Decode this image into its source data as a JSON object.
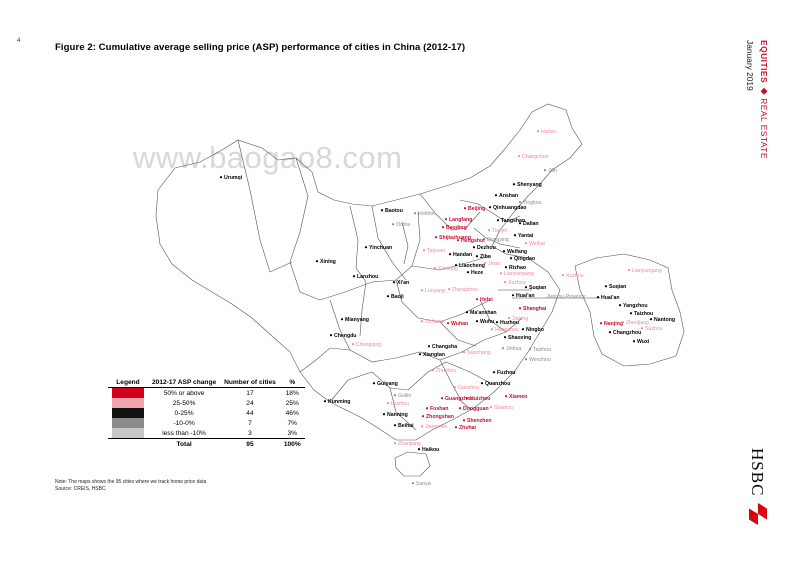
{
  "page_number": "4",
  "title": "Figure 2: Cumulative average selling price (ASP) performance of cities in China (2012-17)",
  "sidebar": {
    "section_a": "EQUITIES",
    "bullet": "◆",
    "section_b": "REAL ESTATE",
    "date": "January 2019"
  },
  "watermark": "www.baogao8.com",
  "map_labels": {
    "province_label": "Jiangsu Province",
    "cities": [
      {
        "name": "Harbin",
        "tier": "pink"
      },
      {
        "name": "Changchun",
        "tier": "pink"
      },
      {
        "name": "Jilin",
        "tier": "grey"
      },
      {
        "name": "Urumqi",
        "tier": "black"
      },
      {
        "name": "Shenyang",
        "tier": "black"
      },
      {
        "name": "Anshan",
        "tier": "black"
      },
      {
        "name": "Yingkou",
        "tier": "grey"
      },
      {
        "name": "Baotou",
        "tier": "black"
      },
      {
        "name": "Hohhot",
        "tier": "grey"
      },
      {
        "name": "Ordos",
        "tier": "grey"
      },
      {
        "name": "Beijing",
        "tier": "red"
      },
      {
        "name": "Qinhuangdao",
        "tier": "black"
      },
      {
        "name": "Tangshan",
        "tier": "black"
      },
      {
        "name": "Dalian",
        "tier": "black"
      },
      {
        "name": "Langfang",
        "tier": "red"
      },
      {
        "name": "Baoding",
        "tier": "red"
      },
      {
        "name": "Tianjin",
        "tier": "pink"
      },
      {
        "name": "Dongying",
        "tier": "grey"
      },
      {
        "name": "Yantai",
        "tier": "black"
      },
      {
        "name": "Shijiazhuang",
        "tier": "red"
      },
      {
        "name": "Hengshui",
        "tier": "red"
      },
      {
        "name": "Weihai",
        "tier": "pink"
      },
      {
        "name": "Yinchuan",
        "tier": "black"
      },
      {
        "name": "Taiyuan",
        "tier": "pink"
      },
      {
        "name": "Dezhou",
        "tier": "black"
      },
      {
        "name": "Weifang",
        "tier": "black"
      },
      {
        "name": "Handan",
        "tier": "black"
      },
      {
        "name": "Zibo",
        "tier": "black"
      },
      {
        "name": "Jinan",
        "tier": "pink"
      },
      {
        "name": "Qingdao",
        "tier": "black"
      },
      {
        "name": "Xining",
        "tier": "black"
      },
      {
        "name": "Xinxiang",
        "tier": "pink"
      },
      {
        "name": "Liaocheng",
        "tier": "black"
      },
      {
        "name": "Rizhao",
        "tier": "black"
      },
      {
        "name": "Heze",
        "tier": "black"
      },
      {
        "name": "Lianyungang",
        "tier": "pink"
      },
      {
        "name": "Lanzhou",
        "tier": "black"
      },
      {
        "name": "Xuzhou",
        "tier": "pink"
      },
      {
        "name": "Xi'an",
        "tier": "black"
      },
      {
        "name": "Luoyang",
        "tier": "pink"
      },
      {
        "name": "Zhengzhou",
        "tier": "pink"
      },
      {
        "name": "Suqian",
        "tier": "black"
      },
      {
        "name": "Baoji",
        "tier": "black"
      },
      {
        "name": "Huai'an",
        "tier": "black"
      },
      {
        "name": "Hefei",
        "tier": "red"
      },
      {
        "name": "Ma'anshan",
        "tier": "black"
      },
      {
        "name": "Shanghai",
        "tier": "red"
      },
      {
        "name": "Jiaxing",
        "tier": "pink"
      },
      {
        "name": "Yichang",
        "tier": "pink"
      },
      {
        "name": "Mianyang",
        "tier": "black"
      },
      {
        "name": "Wuhan",
        "tier": "red"
      },
      {
        "name": "Wuhu",
        "tier": "black"
      },
      {
        "name": "Huzhou",
        "tier": "black"
      },
      {
        "name": "Hangzhou",
        "tier": "pink"
      },
      {
        "name": "Ningbo",
        "tier": "black"
      },
      {
        "name": "Chengdu",
        "tier": "black"
      },
      {
        "name": "Shaoxing",
        "tier": "black"
      },
      {
        "name": "Chongqing",
        "tier": "pink"
      },
      {
        "name": "Jinhua",
        "tier": "grey"
      },
      {
        "name": "Taizhou",
        "tier": "grey"
      },
      {
        "name": "Changsha",
        "tier": "black"
      },
      {
        "name": "Xiangtan",
        "tier": "black"
      },
      {
        "name": "Nanchang",
        "tier": "pink"
      },
      {
        "name": "Wenzhou",
        "tier": "grey"
      },
      {
        "name": "Zhuzhou",
        "tier": "pink"
      },
      {
        "name": "Fuzhou",
        "tier": "black"
      },
      {
        "name": "Guiyang",
        "tier": "black"
      },
      {
        "name": "Quanzhou",
        "tier": "black"
      },
      {
        "name": "Ganzhou",
        "tier": "pink"
      },
      {
        "name": "Guilin",
        "tier": "grey"
      },
      {
        "name": "Liuzhou",
        "tier": "pink"
      },
      {
        "name": "Guangzhou",
        "tier": "red"
      },
      {
        "name": "Huizhou",
        "tier": "red"
      },
      {
        "name": "Xiamen",
        "tier": "red"
      },
      {
        "name": "Kunming",
        "tier": "black"
      },
      {
        "name": "Shantou",
        "tier": "pink"
      },
      {
        "name": "Foshan",
        "tier": "red"
      },
      {
        "name": "Dongguan",
        "tier": "red"
      },
      {
        "name": "Nanning",
        "tier": "black"
      },
      {
        "name": "Zhongshan",
        "tier": "red"
      },
      {
        "name": "Shenzhen",
        "tier": "red"
      },
      {
        "name": "Beihai",
        "tier": "black"
      },
      {
        "name": "Jiangmen",
        "tier": "pink"
      },
      {
        "name": "Zhuhai",
        "tier": "red"
      },
      {
        "name": "Zhanjiang",
        "tier": "pink"
      },
      {
        "name": "Haikou",
        "tier": "black"
      },
      {
        "name": "Sanya",
        "tier": "grey"
      }
    ],
    "jiangsu_cities": [
      {
        "name": "Xuzhou",
        "tier": "pink"
      },
      {
        "name": "Lianyungang",
        "tier": "pink"
      },
      {
        "name": "Suqian",
        "tier": "black"
      },
      {
        "name": "Huai'an",
        "tier": "black"
      },
      {
        "name": "Yangzhou",
        "tier": "black"
      },
      {
        "name": "Taizhou",
        "tier": "black"
      },
      {
        "name": "Nantong",
        "tier": "black"
      },
      {
        "name": "Nanjing",
        "tier": "red"
      },
      {
        "name": "Zhenjiang",
        "tier": "pink"
      },
      {
        "name": "Suzhou",
        "tier": "pink"
      },
      {
        "name": "Changzhou",
        "tier": "black"
      },
      {
        "name": "Wuxi",
        "tier": "black"
      }
    ]
  },
  "legend": {
    "headers": [
      "Legend",
      "2012-17 ASP change",
      "Number of cities",
      "%"
    ],
    "rows": [
      {
        "color": "#d0021b",
        "change": "50% or above",
        "count": "17",
        "pct": "18%"
      },
      {
        "color": "#f2a4ae",
        "change": "25-50%",
        "count": "24",
        "pct": "25%"
      },
      {
        "color": "#111111",
        "change": "0-25%",
        "count": "44",
        "pct": "46%"
      },
      {
        "color": "#8a8a8a",
        "change": "-10-0%",
        "count": "7",
        "pct": "7%"
      },
      {
        "color": "#c6c6c6",
        "change": "less than -10%",
        "count": "3",
        "pct": "3%"
      }
    ],
    "total": {
      "label": "Total",
      "count": "95",
      "pct": "100%"
    }
  },
  "note": "Note: The maps shows the 95 cities where we track home price data",
  "source": "Source: CREIS, HSBC",
  "logo": {
    "text": "HSBC",
    "color": "#db0011"
  }
}
